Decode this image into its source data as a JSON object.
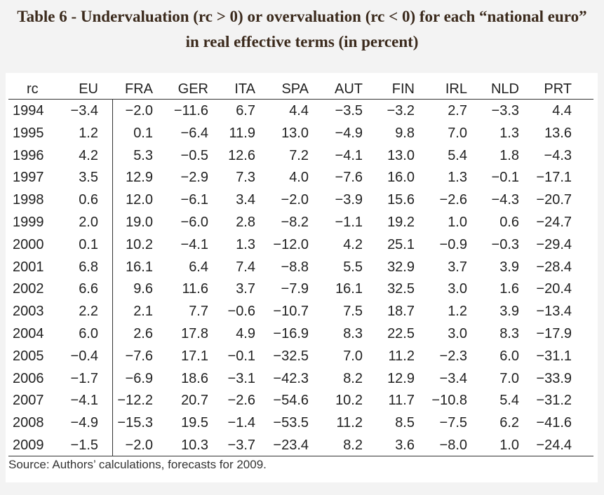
{
  "title": "Table 6 - Undervaluation (rc > 0) or overvaluation (rc < 0) for each “national euro” in real effective terms (in percent)",
  "table": {
    "header": [
      "rc",
      "EU",
      "FRA",
      "GER",
      "ITA",
      "SPA",
      "AUT",
      "FIN",
      "IRL",
      "NLD",
      "PRT"
    ],
    "rows": [
      [
        "1994",
        "−3.4",
        "−2.0",
        "−11.6",
        "6.7",
        "4.4",
        "−3.5",
        "−3.2",
        "2.7",
        "−3.3",
        "4.4"
      ],
      [
        "1995",
        "1.2",
        "0.1",
        "−6.4",
        "11.9",
        "13.0",
        "−4.9",
        "9.8",
        "7.0",
        "1.3",
        "13.6"
      ],
      [
        "1996",
        "4.2",
        "5.3",
        "−0.5",
        "12.6",
        "7.2",
        "−4.1",
        "13.0",
        "5.4",
        "1.8",
        "−4.3"
      ],
      [
        "1997",
        "3.5",
        "12.9",
        "−2.9",
        "7.3",
        "4.0",
        "−7.6",
        "16.0",
        "1.3",
        "−0.1",
        "−17.1"
      ],
      [
        "1998",
        "0.6",
        "12.0",
        "−6.1",
        "3.4",
        "−2.0",
        "−3.9",
        "15.6",
        "−2.6",
        "−4.3",
        "−20.7"
      ],
      [
        "1999",
        "2.0",
        "19.0",
        "−6.0",
        "2.8",
        "−8.2",
        "−1.1",
        "19.2",
        "1.0",
        "0.6",
        "−24.7"
      ],
      [
        "2000",
        "0.1",
        "10.2",
        "−4.1",
        "1.3",
        "−12.0",
        "4.2",
        "25.1",
        "−0.9",
        "−0.3",
        "−29.4"
      ],
      [
        "2001",
        "6.8",
        "16.1",
        "6.4",
        "7.4",
        "−8.8",
        "5.5",
        "32.9",
        "3.7",
        "3.9",
        "−28.4"
      ],
      [
        "2002",
        "6.6",
        "9.6",
        "11.6",
        "3.7",
        "−7.9",
        "16.1",
        "32.5",
        "3.0",
        "1.6",
        "−20.4"
      ],
      [
        "2003",
        "2.2",
        "2.1",
        "7.7",
        "−0.6",
        "−10.7",
        "7.5",
        "18.7",
        "1.2",
        "3.9",
        "−13.4"
      ],
      [
        "2004",
        "6.0",
        "2.6",
        "17.8",
        "4.9",
        "−16.9",
        "8.3",
        "22.5",
        "3.0",
        "8.3",
        "−17.9"
      ],
      [
        "2005",
        "−0.4",
        "−7.6",
        "17.1",
        "−0.1",
        "−32.5",
        "7.0",
        "11.2",
        "−2.3",
        "6.0",
        "−31.1"
      ],
      [
        "2006",
        "−1.7",
        "−6.9",
        "18.6",
        "−3.1",
        "−42.3",
        "8.2",
        "12.9",
        "−3.4",
        "7.0",
        "−33.9"
      ],
      [
        "2007",
        "−4.1",
        "−12.2",
        "20.7",
        "−2.6",
        "−54.6",
        "10.2",
        "11.7",
        "−10.8",
        "5.4",
        "−31.2"
      ],
      [
        "2008",
        "−4.9",
        "−15.3",
        "19.5",
        "−1.4",
        "−53.5",
        "11.2",
        "8.5",
        "−7.5",
        "6.2",
        "−41.6"
      ],
      [
        "2009",
        "−1.5",
        "−2.0",
        "10.3",
        "−3.7",
        "−23.4",
        "8.2",
        "3.6",
        "−8.0",
        "1.0",
        "−24.4"
      ]
    ]
  },
  "source": "Source: Authors’ calculations, forecasts for 2009."
}
